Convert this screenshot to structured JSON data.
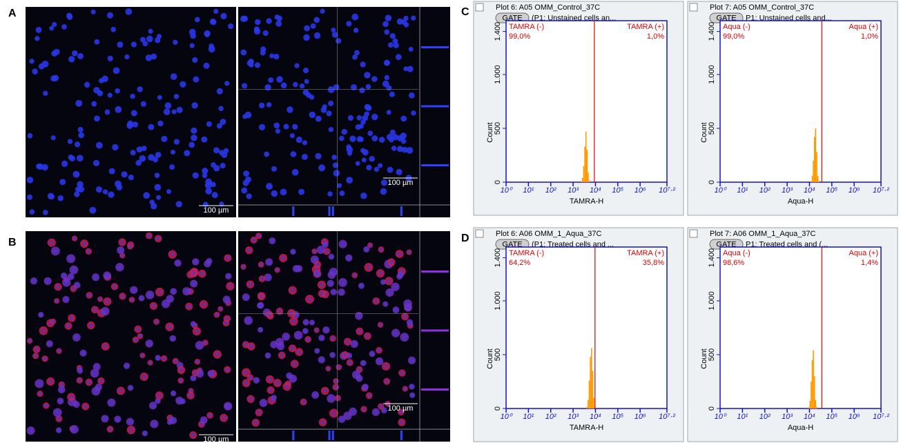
{
  "panel_labels": [
    "A",
    "B",
    "C",
    "D"
  ],
  "micrographs": {
    "scale_bars": [
      "100 µm",
      "100 µm",
      "100 µm",
      "100 µm"
    ]
  },
  "chart_data": [
    {
      "type": "histogram",
      "plot_title": "Plot 6: A05 OMM_Control_37C",
      "gate_button": "GATE",
      "gate_description": "(P1: Unstained cells an...",
      "xlabel": "TAMRA-H",
      "ylabel": "Count",
      "xlim": [
        0,
        7.2
      ],
      "xticks": [
        {
          "value": 0,
          "label": "10⁰"
        },
        {
          "value": 1,
          "label": "10¹"
        },
        {
          "value": 2,
          "label": "10²"
        },
        {
          "value": 3,
          "label": "10³"
        },
        {
          "value": 4,
          "label": "10⁴"
        },
        {
          "value": 5,
          "label": "10⁵"
        },
        {
          "value": 6,
          "label": "10⁶"
        },
        {
          "value": 7.2,
          "label": "10⁷·²"
        }
      ],
      "ylim": [
        0,
        1500
      ],
      "yticks": [
        0,
        500,
        {
          "value": 1000,
          "label": "1.000"
        },
        {
          "value": 1400,
          "label": "1.400"
        }
      ],
      "bins": [
        3.35,
        3.4,
        3.45,
        3.5,
        3.55,
        3.6,
        3.65,
        3.7,
        3.75
      ],
      "counts": [
        10,
        40,
        150,
        330,
        470,
        300,
        90,
        15
      ],
      "color": "#ff9900",
      "gate": 3.95,
      "regions": {
        "names": [
          "TAMRA (-)",
          "TAMRA (+)"
        ],
        "values": [
          99.0,
          1.0
        ],
        "value_labels": [
          "99,0%",
          "1,0%"
        ]
      }
    },
    {
      "type": "histogram",
      "plot_title": "Plot 7: A05 OMM_Control_37C",
      "gate_button": "GATE",
      "gate_description": "P1: Unstained cells and...",
      "xlabel": "Aqua-H",
      "ylabel": "Count",
      "xlim": [
        0,
        7.2
      ],
      "xticks": [
        {
          "value": 0,
          "label": "10⁰"
        },
        {
          "value": 1,
          "label": "10¹"
        },
        {
          "value": 2,
          "label": "10²"
        },
        {
          "value": 3,
          "label": "10³"
        },
        {
          "value": 4,
          "label": "10⁴"
        },
        {
          "value": 5,
          "label": "10⁵"
        },
        {
          "value": 6,
          "label": "10⁶"
        },
        {
          "value": 7.2,
          "label": "10⁷·²"
        }
      ],
      "ylim": [
        0,
        1500
      ],
      "yticks": [
        0,
        500,
        {
          "value": 1000,
          "label": "1.000"
        },
        {
          "value": 1400,
          "label": "1.400"
        }
      ],
      "bins": [
        4.05,
        4.1,
        4.15,
        4.2,
        4.25,
        4.3,
        4.35,
        4.4,
        4.45
      ],
      "counts": [
        10,
        60,
        200,
        420,
        500,
        280,
        60,
        10
      ],
      "color": "#ff9900",
      "gate": 4.55,
      "regions": {
        "names": [
          "Aqua (-)",
          "Aqua (+)"
        ],
        "values": [
          99.0,
          1.0
        ],
        "value_labels": [
          "99,0%",
          "1,0%"
        ]
      }
    },
    {
      "type": "histogram",
      "plot_title": "Plot 6: A06 OMM_1_Aqua_37C",
      "gate_button": "GATE",
      "gate_description": "(P1: Treated cells and ...",
      "xlabel": "TAMRA-H",
      "ylabel": "Count",
      "xlim": [
        0,
        7.2
      ],
      "xticks": [
        {
          "value": 0,
          "label": "10⁰"
        },
        {
          "value": 1,
          "label": "10¹"
        },
        {
          "value": 2,
          "label": "10²"
        },
        {
          "value": 3,
          "label": "10³"
        },
        {
          "value": 4,
          "label": "10⁴"
        },
        {
          "value": 5,
          "label": "10⁵"
        },
        {
          "value": 6,
          "label": "10⁶"
        },
        {
          "value": 7.2,
          "label": "10⁷·²"
        }
      ],
      "ylim": [
        0,
        1500
      ],
      "yticks": [
        0,
        500,
        {
          "value": 1000,
          "label": "1.000"
        },
        {
          "value": 1400,
          "label": "1.400"
        }
      ],
      "bins": [
        3.6,
        3.65,
        3.7,
        3.75,
        3.8,
        3.85,
        3.9,
        3.95,
        4.0
      ],
      "counts": [
        15,
        80,
        260,
        480,
        560,
        350,
        100,
        20
      ],
      "color": "#ff9900",
      "gate": 3.98,
      "regions": {
        "names": [
          "TAMRA (-)",
          "TAMRA (+)"
        ],
        "values": [
          64.2,
          35.8
        ],
        "value_labels": [
          "64,2%",
          "35,8%"
        ]
      }
    },
    {
      "type": "histogram",
      "plot_title": "Plot 7: A06 OMM_1_Aqua_37C",
      "gate_button": "GATE",
      "gate_description": "P1: Treated cells and (...",
      "xlabel": "Aqua-H",
      "ylabel": "Count",
      "xlim": [
        0,
        7.2
      ],
      "xticks": [
        {
          "value": 0,
          "label": "10⁰"
        },
        {
          "value": 1,
          "label": "10¹"
        },
        {
          "value": 2,
          "label": "10²"
        },
        {
          "value": 3,
          "label": "10³"
        },
        {
          "value": 4,
          "label": "10⁴"
        },
        {
          "value": 5,
          "label": "10⁵"
        },
        {
          "value": 6,
          "label": "10⁶"
        },
        {
          "value": 7.2,
          "label": "10⁷·²"
        }
      ],
      "ylim": [
        0,
        1500
      ],
      "yticks": [
        0,
        500,
        {
          "value": 1000,
          "label": "1.000"
        },
        {
          "value": 1400,
          "label": "1.400"
        }
      ],
      "bins": [
        3.95,
        4.0,
        4.05,
        4.1,
        4.15,
        4.2,
        4.25,
        4.3,
        4.35
      ],
      "counts": [
        10,
        70,
        250,
        450,
        540,
        300,
        80,
        15
      ],
      "color": "#ff9900",
      "gate": 4.55,
      "regions": {
        "names": [
          "Aqua (-)",
          "Aqua (+)"
        ],
        "values": [
          98.6,
          1.4
        ],
        "value_labels": [
          "98,6%",
          "1,4%"
        ]
      }
    }
  ]
}
